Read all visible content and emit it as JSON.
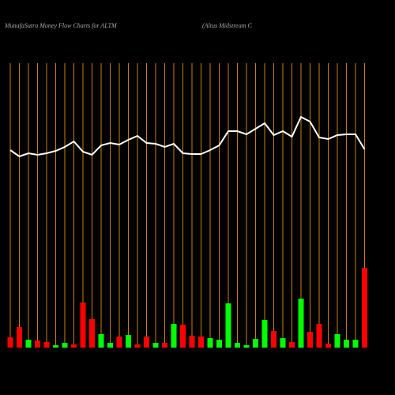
{
  "chart_data": {
    "type": "money-flow",
    "title": "MunafaSutra  Money Flow  Charts for ALTM",
    "subtitle": "(Altus Midstream C",
    "categories": [
      null,
      null,
      null,
      null,
      null,
      null,
      null,
      null,
      null,
      null,
      null,
      null,
      null,
      null,
      null,
      null,
      null,
      null,
      null,
      null,
      null,
      null,
      null,
      null,
      null,
      null,
      null,
      null,
      null,
      null,
      null,
      null,
      null,
      null,
      null,
      null,
      null,
      null,
      null,
      null
    ],
    "grid": true,
    "grid_color": "#c8820a",
    "series": [
      {
        "type": "line",
        "color": "#ffffff",
        "values": [
          250,
          242,
          246,
          244,
          246,
          249,
          254,
          261,
          248,
          244,
          256,
          259,
          257,
          263,
          268,
          259,
          258,
          254,
          258,
          246,
          245,
          245,
          250,
          256,
          274,
          274,
          270,
          277,
          284,
          269,
          274,
          267,
          292,
          286,
          266,
          264,
          269,
          270,
          270,
          251
        ]
      },
      {
        "type": "bar",
        "colors": [
          "#ff0000",
          "#ff0000",
          "#00ff00",
          "#ff0000",
          "#ff0000",
          "#00ff00",
          "#00ff00",
          "#ff0000",
          "#ff0000",
          "#ff0000",
          "#00ff00",
          "#00ff00",
          "#ff0000",
          "#00ff00",
          "#ff0000",
          "#ff0000",
          "#00ff00",
          "#ff0000",
          "#00ff00",
          "#ff0000",
          "#ff0000",
          "#ff0000",
          "#00ff00",
          "#00ff00",
          "#00ff00",
          "#00ff00",
          "#00ff00",
          "#00ff00",
          "#00ff00",
          "#ff0000",
          "#00ff00",
          "#ff0000",
          "#00ff00",
          "#ff0000",
          "#ff0000",
          "#ff0000",
          "#00ff00",
          "#00ff00",
          "#00ff00",
          "#ff0000"
        ],
        "values": [
          13,
          26,
          10,
          9,
          7,
          3,
          6,
          4,
          57,
          36,
          17,
          6,
          14,
          16,
          4,
          14,
          6,
          6,
          30,
          29,
          15,
          14,
          12,
          10,
          56,
          6,
          3,
          11,
          35,
          21,
          12,
          7,
          62,
          20,
          30,
          5,
          17,
          10,
          10,
          101
        ]
      }
    ]
  }
}
